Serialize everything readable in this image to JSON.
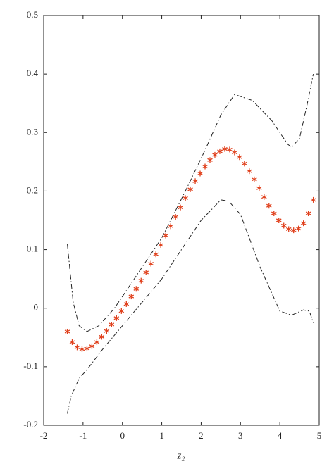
{
  "chart_data": {
    "type": "line",
    "x_label": "z₂",
    "xlim": [
      -2,
      5
    ],
    "xticks": [
      -2,
      -1,
      0,
      1,
      2,
      3,
      4,
      5
    ],
    "ylim": [
      -0.2,
      0.5
    ],
    "yticks": [
      -0.2,
      -0.1,
      0,
      0.1,
      0.2,
      0.3,
      0.4,
      0.5
    ],
    "grid": false,
    "series": [
      {
        "marker": "asterisk",
        "color": "#e0401c",
        "x": [
          -1.4,
          -1.275,
          -1.15,
          -1.025,
          -0.9,
          -0.775,
          -0.65,
          -0.525,
          -0.4,
          -0.275,
          -0.15,
          -0.025,
          0.1,
          0.225,
          0.35,
          0.475,
          0.6,
          0.725,
          0.85,
          0.975,
          1.1,
          1.225,
          1.35,
          1.475,
          1.6,
          1.725,
          1.85,
          1.975,
          2.1,
          2.225,
          2.35,
          2.475,
          2.6,
          2.725,
          2.85,
          2.975,
          3.1,
          3.225,
          3.35,
          3.475,
          3.6,
          3.725,
          3.85,
          3.975,
          4.1,
          4.225,
          4.35,
          4.475,
          4.6,
          4.725,
          4.85
        ],
        "values": [
          -0.04,
          -0.058,
          -0.067,
          -0.07,
          -0.069,
          -0.065,
          -0.058,
          -0.049,
          -0.039,
          -0.028,
          -0.017,
          -0.005,
          0.007,
          0.02,
          0.033,
          0.047,
          0.061,
          0.076,
          0.092,
          0.108,
          0.124,
          0.14,
          0.156,
          0.172,
          0.188,
          0.203,
          0.217,
          0.23,
          0.242,
          0.253,
          0.262,
          0.268,
          0.272,
          0.271,
          0.266,
          0.258,
          0.247,
          0.234,
          0.22,
          0.205,
          0.19,
          0.175,
          0.162,
          0.15,
          0.141,
          0.135,
          0.133,
          0.136,
          0.145,
          0.162,
          0.185
        ]
      },
      {
        "marker": "dashdot",
        "color": "#222222",
        "x": [
          -1.4,
          -1.25,
          -1.1,
          -0.9,
          -0.6,
          -0.2,
          0.3,
          1,
          1.6,
          2.1,
          2.5,
          2.85,
          3.3,
          3.8,
          4.2,
          4.3,
          4.5,
          4.7,
          4.85
        ],
        "values": [
          0.11,
          0.01,
          -0.03,
          -0.04,
          -0.03,
          0,
          0.05,
          0.12,
          0.2,
          0.27,
          0.33,
          0.365,
          0.355,
          0.32,
          0.28,
          0.275,
          0.29,
          0.35,
          0.4
        ]
      },
      {
        "marker": "dashdot",
        "color": "#222222",
        "x": [
          -1.4,
          -1.3,
          -1.1,
          -0.9,
          -0.5,
          0,
          0.5,
          1,
          1.5,
          2,
          2.5,
          2.7,
          3,
          3.5,
          4,
          4.3,
          4.6,
          4.75,
          4.85
        ],
        "values": [
          -0.18,
          -0.15,
          -0.12,
          -0.105,
          -0.07,
          -0.03,
          0.01,
          0.05,
          0.1,
          0.15,
          0.185,
          0.183,
          0.16,
          0.07,
          -0.005,
          -0.012,
          -0.003,
          -0.005,
          -0.025
        ]
      }
    ]
  }
}
